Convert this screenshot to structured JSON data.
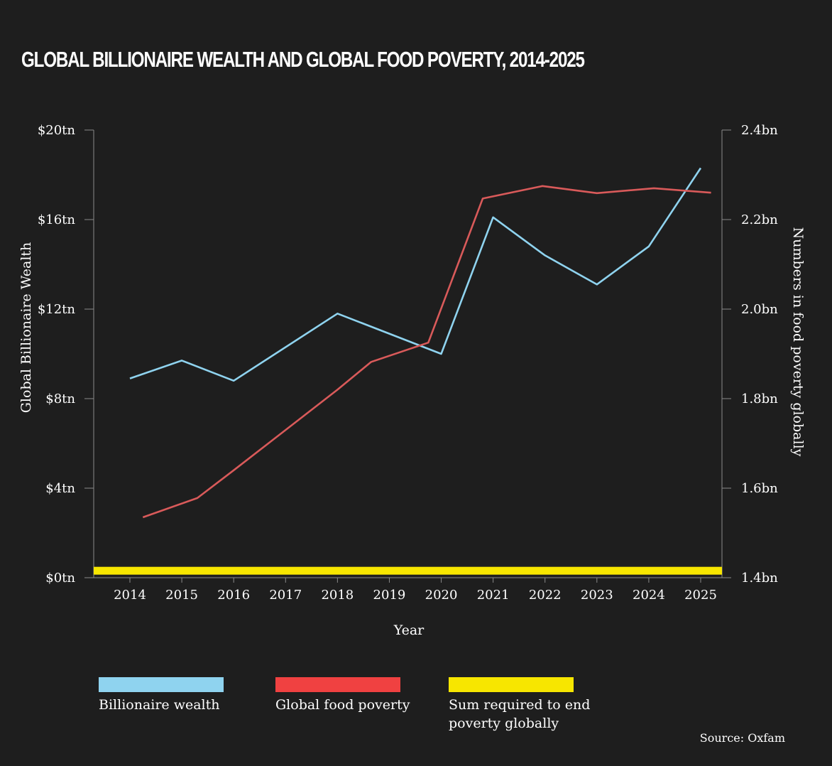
{
  "title": "GLOBAL BILLIONAIRE WEALTH AND GLOBAL FOOD POVERTY, 2014-2025",
  "source": "Source: Oxfam",
  "legend": [
    {
      "label": "Billionaire wealth",
      "color": "#8fd3ef"
    },
    {
      "label": "Global food poverty",
      "color": "#f04141"
    },
    {
      "label": "Sum required to end poverty globally",
      "color": "#f7e600"
    }
  ],
  "chart_data": {
    "type": "line",
    "title": "GLOBAL BILLIONAIRE WEALTH AND GLOBAL FOOD POVERTY, 2014-2025",
    "xlabel": "Year",
    "ylabel_left": "Global Billionaire Wealth",
    "ylabel_right": "Numbers in food poverty globally",
    "categories": [
      "2014",
      "2015",
      "2016",
      "2017",
      "2018",
      "2019",
      "2020",
      "2021",
      "2022",
      "2023",
      "2024",
      "2025"
    ],
    "y_left": {
      "lim": [
        0,
        20
      ],
      "ticks": [
        0,
        4,
        8,
        12,
        16,
        20
      ],
      "tick_labels": [
        "$0tn",
        "$4tn",
        "$8tn",
        "$12tn",
        "$16tn",
        "$20tn"
      ]
    },
    "y_right": {
      "lim": [
        1.4,
        2.4
      ],
      "ticks": [
        1.4,
        1.6,
        1.8,
        2.0,
        2.2,
        2.4
      ],
      "tick_labels": [
        "1.4bn",
        "1.6bn",
        "1.8bn",
        "2.0bn",
        "2.2bn",
        "2.4bn"
      ]
    },
    "series": [
      {
        "name": "Billionaire wealth",
        "axis": "left",
        "color": "#8fd3ef",
        "x": [
          2014,
          2015,
          2016,
          2018,
          2020,
          2021,
          2022,
          2023,
          2024,
          2025
        ],
        "values": [
          8.9,
          9.7,
          8.8,
          11.8,
          10.0,
          16.1,
          14.4,
          13.1,
          14.8,
          18.3
        ]
      },
      {
        "name": "Global food poverty",
        "axis": "right",
        "color": "#d95a5a",
        "x": [
          2014.25,
          2015.3,
          2016,
          2017,
          2018,
          2018.65,
          2019.75,
          2020.8,
          2021.95,
          2023,
          2024.1,
          2025.2
        ],
        "values": [
          1.535,
          1.578,
          1.64,
          1.73,
          1.82,
          1.882,
          1.925,
          2.247,
          2.275,
          2.259,
          2.27,
          2.26
        ]
      },
      {
        "name": "Sum required to end poverty globally",
        "axis": "left",
        "color": "#f7e600",
        "x": [
          2013.3,
          2025.4
        ],
        "values": [
          0.2,
          0.2
        ]
      }
    ]
  }
}
